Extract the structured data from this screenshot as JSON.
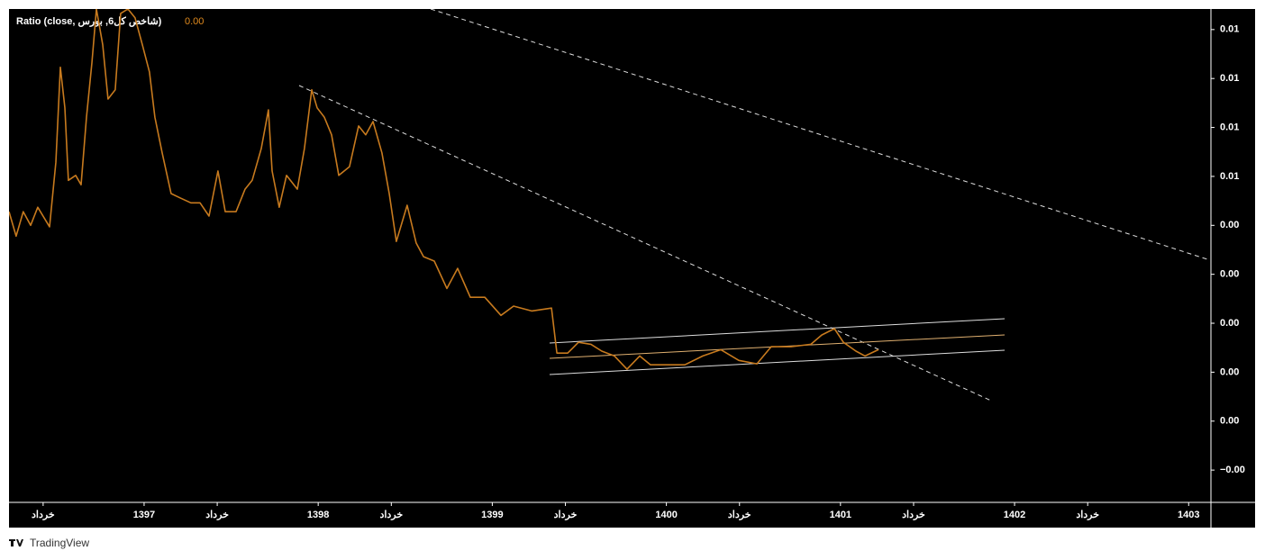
{
  "chart_data": {
    "type": "line",
    "legend_title": "Ratio (close, شاخص کل6, بورس)",
    "legend_value": "0.00",
    "watermark": "TradingView",
    "x": [
      1396.224,
      1396.265,
      1396.306,
      1396.348,
      1396.389,
      1396.457,
      1396.493,
      1396.519,
      1396.545,
      1396.565,
      1396.607,
      1396.638,
      1396.669,
      1396.7,
      1396.726,
      1396.762,
      1396.793,
      1396.834,
      1396.865,
      1396.907,
      1396.948,
      1396.99,
      1397.031,
      1397.062,
      1397.104,
      1397.155,
      1397.207,
      1397.269,
      1397.321,
      1397.373,
      1397.424,
      1397.466,
      1397.528,
      1397.58,
      1397.621,
      1397.673,
      1397.714,
      1397.735,
      1397.776,
      1397.818,
      1397.88,
      1397.921,
      1397.963,
      1397.994,
      1398.035,
      1398.077,
      1398.118,
      1398.18,
      1398.232,
      1398.273,
      1398.315,
      1398.366,
      1398.408,
      1398.449,
      1398.511,
      1398.563,
      1398.605,
      1398.667,
      1398.739,
      1398.801,
      1398.874,
      1398.957,
      1399.05,
      1399.122,
      1399.226,
      1399.34,
      1399.371,
      1399.433,
      1399.495,
      1399.567,
      1399.629,
      1399.702,
      1399.774,
      1399.847,
      1399.909,
      1400.002,
      1400.106,
      1400.209,
      1400.313,
      1400.416,
      1400.52,
      1400.602,
      1400.716,
      1400.83,
      1400.892,
      1400.965,
      1401.017,
      1401.089,
      1401.141,
      1401.218
    ],
    "series": [
      {
        "name": "Ratio",
        "color": "#c77a1e",
        "values": [
          0.00428,
          0.00378,
          0.00428,
          0.004,
          0.00437,
          0.00397,
          0.00529,
          0.00723,
          0.0064,
          0.00492,
          0.00502,
          0.00483,
          0.00621,
          0.00732,
          0.00842,
          0.00769,
          0.00658,
          0.00677,
          0.00833,
          0.00842,
          0.00824,
          0.00769,
          0.00713,
          0.00621,
          0.00548,
          0.00465,
          0.00456,
          0.00446,
          0.00446,
          0.00419,
          0.00511,
          0.00428,
          0.00428,
          0.00474,
          0.00492,
          0.00557,
          0.00636,
          0.00511,
          0.00437,
          0.00502,
          0.00474,
          0.00557,
          0.00677,
          0.0064,
          0.00621,
          0.00585,
          0.00502,
          0.0052,
          0.00603,
          0.00585,
          0.00612,
          0.00548,
          0.00465,
          0.00367,
          0.00441,
          0.00364,
          0.00336,
          0.00327,
          0.00271,
          0.00312,
          0.00253,
          0.00253,
          0.00216,
          0.00235,
          0.00225,
          0.00231,
          0.00139,
          0.00139,
          0.00161,
          0.00157,
          0.00143,
          0.00133,
          0.00106,
          0.00133,
          0.00115,
          0.00115,
          0.00115,
          0.00133,
          0.00146,
          0.00124,
          0.00117,
          0.00152,
          0.00152,
          0.00157,
          0.00176,
          0.00189,
          0.00161,
          0.00143,
          0.00133,
          0.00146
        ]
      }
    ],
    "xlim": [
      1396.224,
      1403.128
    ],
    "xticks": [
      {
        "value": 1396.42,
        "label": "خرداد"
      },
      1397,
      {
        "value": 1397.42,
        "label": "خرداد"
      },
      1398,
      {
        "value": 1398.42,
        "label": "خرداد"
      },
      1399,
      {
        "value": 1399.42,
        "label": "خرداد"
      },
      1400,
      {
        "value": 1400.42,
        "label": "خرداد"
      },
      1401,
      {
        "value": 1401.42,
        "label": "خرداد"
      },
      1402,
      {
        "value": 1402.42,
        "label": "خرداد"
      },
      1403
    ],
    "ylim": [
      -0.00166,
      0.00842
    ],
    "yticks": [
      {
        "value": 0.008,
        "label": "0.01"
      },
      {
        "value": 0.007,
        "label": "0.01"
      },
      {
        "value": 0.006,
        "label": "0.01"
      },
      {
        "value": 0.005,
        "label": "0.01"
      },
      {
        "value": 0.004,
        "label": "0.00"
      },
      {
        "value": 0.003,
        "label": "0.00"
      },
      {
        "value": 0.002,
        "label": "0.00"
      },
      {
        "value": 0.001,
        "label": "0.00"
      },
      {
        "value": 0,
        "label": "0.00"
      },
      {
        "value": -0.001,
        "label": "−0.00"
      }
    ],
    "grid": false
  }
}
